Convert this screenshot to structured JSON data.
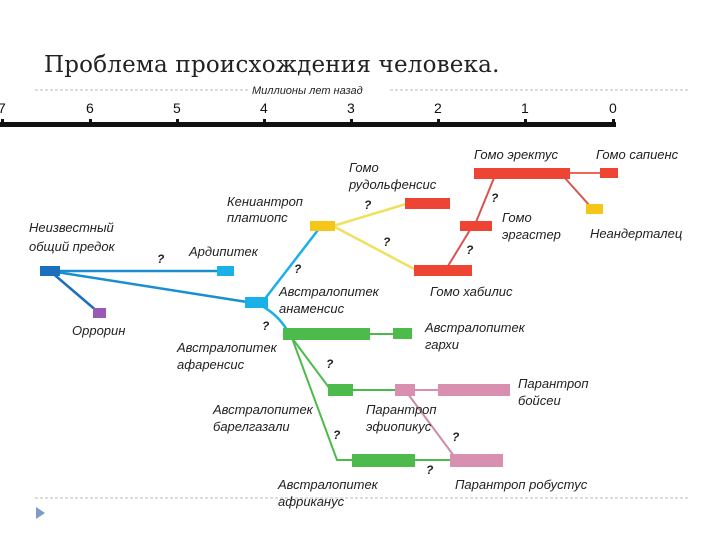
{
  "slide": {
    "title": "Проблема происхождения человека."
  },
  "axis": {
    "label": "Миллионы лет назад",
    "ticks": [
      "7",
      "6",
      "5",
      "4",
      "3",
      "2",
      "1",
      "0"
    ]
  },
  "species": {
    "ancestor": [
      "Неизвестный",
      "общий предок"
    ],
    "ardipithecus": "Ардипитек",
    "orrorin": "Оррорин",
    "anamensis": [
      "Австралопитек",
      "анаменсис"
    ],
    "kenyanthropus": [
      "Кениантроп",
      "платиопс"
    ],
    "rudolfensis": [
      "Гомо",
      "рудольфенсис"
    ],
    "habilis": "Гомо хабилис",
    "ergaster": [
      "Гомо",
      "эргастер"
    ],
    "erectus": "Гомо эректус",
    "sapiens": "Гомо сапиенс",
    "neanderthal": "Неандерталец",
    "afarensis": [
      "Австралопитек",
      "афаренсис"
    ],
    "garhi": [
      "Австралопитек",
      "гархи"
    ],
    "bahrelghazali": [
      "Австралопитек",
      "барелгазали"
    ],
    "aethiopicus": [
      "Парантроп",
      "эфиопикус"
    ],
    "boisei": [
      "Парантроп",
      "бойсеи"
    ],
    "africanus": [
      "Австралопитек",
      "африканус"
    ],
    "robustus": "Парантроп робустус"
  },
  "uncertain_mark": "?",
  "colors": {
    "ancestor": "#1a6fbf",
    "early": "#1ab0e8",
    "orrorin": "#9b59b6",
    "kenya": "#f5c518",
    "homo": "#ee4433",
    "australo": "#4cbb4c",
    "paranthropus": "#d98fb0"
  }
}
